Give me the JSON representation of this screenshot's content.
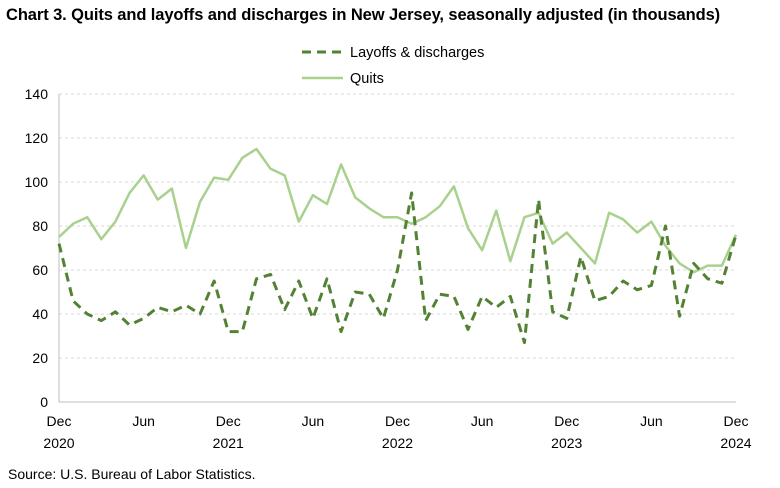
{
  "title": "Chart 3. Quits and layoffs and discharges in New Jersey, seasonally adjusted (in thousands)",
  "source": "Source: U.S. Bureau of Labor Statistics.",
  "chart_data": {
    "type": "line",
    "title": "Chart 3. Quits and layoffs and discharges in New Jersey, seasonally adjusted (in thousands)",
    "xlabel": "",
    "ylabel": "",
    "ylim": [
      0,
      140
    ],
    "yticks": [
      "0",
      "20",
      "40",
      "60",
      "80",
      "100",
      "120",
      "140"
    ],
    "x_start": "Dec 2020",
    "x_end": "Dec 2024",
    "xticks": [
      {
        "month": "Dec",
        "year": "2020"
      },
      {
        "month": "Jun",
        "year": ""
      },
      {
        "month": "Dec",
        "year": "2021"
      },
      {
        "month": "Jun",
        "year": ""
      },
      {
        "month": "Dec",
        "year": "2022"
      },
      {
        "month": "Jun",
        "year": ""
      },
      {
        "month": "Dec",
        "year": "2023"
      },
      {
        "month": "Jun",
        "year": ""
      },
      {
        "month": "Dec",
        "year": "2024"
      }
    ],
    "grid": true,
    "legend_position": "top-center",
    "series": [
      {
        "name": "Layoffs & discharges",
        "style": "dashed",
        "color": "#548235",
        "values": [
          72,
          46,
          40,
          37,
          41,
          35,
          38,
          43,
          41,
          44,
          40,
          55,
          32,
          32,
          56,
          58,
          42,
          55,
          38,
          56,
          32,
          50,
          49,
          38,
          60,
          95,
          37,
          49,
          48,
          33,
          48,
          43,
          48,
          27,
          92,
          41,
          38,
          66,
          46,
          48,
          55,
          51,
          53,
          80,
          39,
          63,
          56,
          54,
          76
        ]
      },
      {
        "name": "Quits",
        "style": "solid",
        "color": "#a9d18e",
        "values": [
          75,
          81,
          84,
          74,
          82,
          95,
          103,
          92,
          97,
          70,
          91,
          102,
          101,
          111,
          115,
          106,
          103,
          82,
          94,
          90,
          108,
          93,
          88,
          84,
          84,
          81,
          84,
          89,
          98,
          79,
          69,
          87,
          64,
          84,
          86,
          72,
          77,
          70,
          63,
          86,
          83,
          77,
          82,
          71,
          63,
          59,
          62,
          62,
          76
        ]
      }
    ]
  }
}
